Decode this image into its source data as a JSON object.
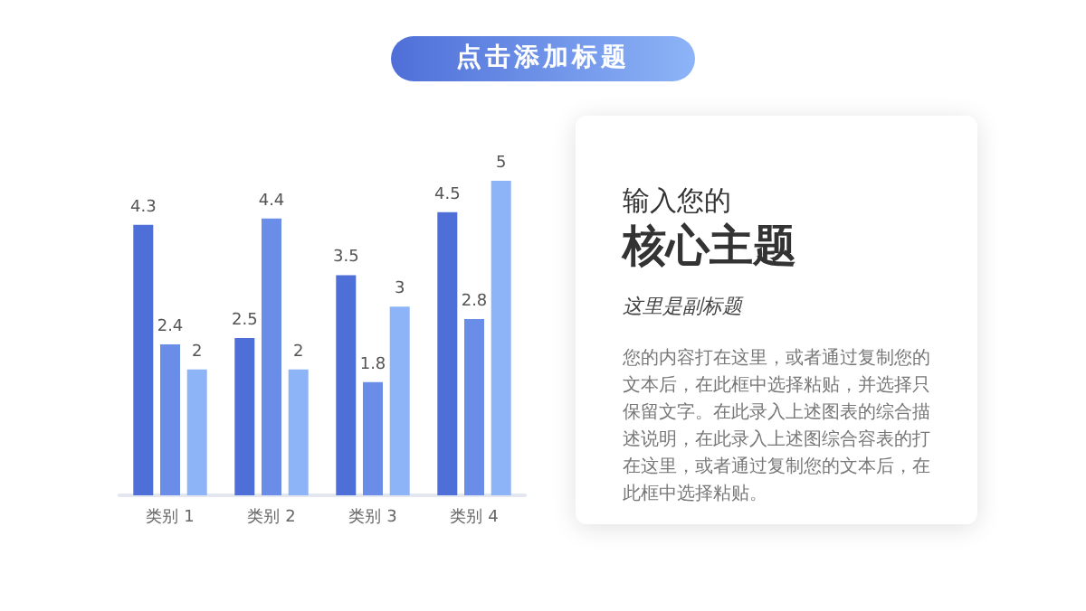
{
  "chart_data": [
    {
      "type": "bar",
      "title": "点击添加标题",
      "categories": [
        "类别 1",
        "类别 2",
        "类别 3",
        "类别 4"
      ],
      "series": [
        {
          "color": "#4f6fd8",
          "values": [
            4.3,
            2.5,
            3.5,
            4.5
          ]
        },
        {
          "color": "#6a8ee8",
          "values": [
            2.4,
            4.4,
            1.8,
            2.8
          ]
        },
        {
          "color": "#8db4f7",
          "values": [
            2,
            2,
            3,
            5
          ]
        }
      ],
      "data_labels": true
    },
    {
      "type": "other",
      "title": "核心主题",
      "subtitle": "这里是副标题",
      "annotations": [
        "输入您的",
        "您的内容打在这里，或者通过复制您的文本后，在此框中选择粘贴，并选择只保留文字。在此录入上述图表的综合描述说明，在此录入上述图综合容表的打在这里，或者通过复制您的文本后，在此框中选择粘贴。"
      ]
    }
  ]
}
